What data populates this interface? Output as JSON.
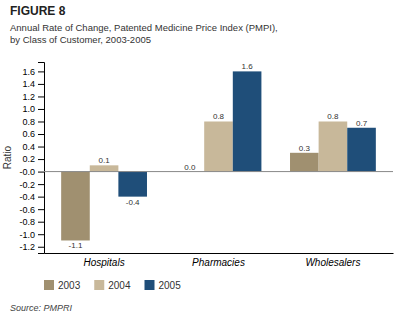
{
  "chart_data": {
    "type": "bar",
    "title": "FIGURE 8",
    "subtitle": "Annual Rate of Change, Patented Medicine Price Index (PMPI),\nby Class of Customer, 2003-2005",
    "y_label": "Ratio",
    "source": "Source: PMPRI",
    "categories": [
      "Hospitals",
      "Pharmacies",
      "Wholesalers"
    ],
    "series": [
      {
        "name": "2003",
        "color": "#a09070",
        "values": [
          -1.1,
          0.0,
          0.3
        ],
        "value_labels": [
          "-1.1",
          "0.0",
          "0.3"
        ]
      },
      {
        "name": "2004",
        "color": "#c8b89a",
        "values": [
          0.1,
          0.8,
          0.8
        ],
        "value_labels": [
          "0.1",
          "0.8",
          "0.8"
        ]
      },
      {
        "name": "2005",
        "color": "#1f4e79",
        "values": [
          -0.4,
          1.6,
          0.7
        ],
        "value_labels": [
          "-0.4",
          "1.6",
          "0.7"
        ]
      }
    ],
    "ylim": [
      -1.3,
      1.75
    ],
    "yticks": [
      -1.2,
      {
        "value": -1.0,
        "label": "-1.0"
      },
      -0.8,
      -0.6,
      -0.4,
      -0.2,
      {
        "value": 0.0,
        "label": "-0.0"
      },
      0.2,
      0.4,
      0.6,
      0.8,
      {
        "value": 1.0,
        "label": "1.0"
      },
      1.2,
      1.4,
      1.6
    ],
    "grid": false,
    "legend": "lower left",
    "data_labels": true
  }
}
